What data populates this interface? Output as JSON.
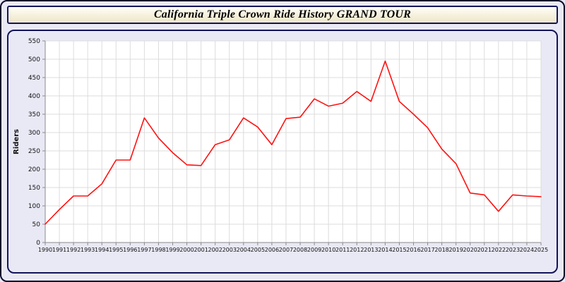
{
  "title": "California Triple Crown Ride History GRAND TOUR",
  "colors": {
    "line": "#ff1111",
    "grid": "#dcdcdc",
    "axis": "#8a8a8a",
    "plot_bg": "#ffffff",
    "panel_bg": "#e9e9f6",
    "text": "#111111"
  },
  "chart_data": {
    "type": "line",
    "title": "California Triple Crown Ride History GRAND TOUR",
    "xlabel": "",
    "ylabel": "Riders",
    "ylim": [
      0,
      550
    ],
    "ytick_step": 50,
    "grid": true,
    "legend_position": "none",
    "x": [
      1990,
      1991,
      1992,
      1993,
      1994,
      1995,
      1996,
      1997,
      1998,
      1999,
      2000,
      2001,
      2002,
      2003,
      2004,
      2005,
      2006,
      2007,
      2008,
      2009,
      2010,
      2011,
      2012,
      2013,
      2014,
      2015,
      2016,
      2017,
      2018,
      2019,
      2020,
      2021,
      2022,
      2023,
      2024,
      2025
    ],
    "series": [
      {
        "name": "Riders",
        "color": "#ff1111",
        "values": [
          50,
          90,
          127,
          127,
          160,
          225,
          225,
          340,
          285,
          245,
          212,
          210,
          267,
          280,
          340,
          315,
          267,
          338,
          342,
          392,
          372,
          380,
          412,
          385,
          495,
          385,
          350,
          313,
          255,
          215,
          135,
          130,
          85,
          130,
          127,
          125
        ]
      }
    ]
  }
}
